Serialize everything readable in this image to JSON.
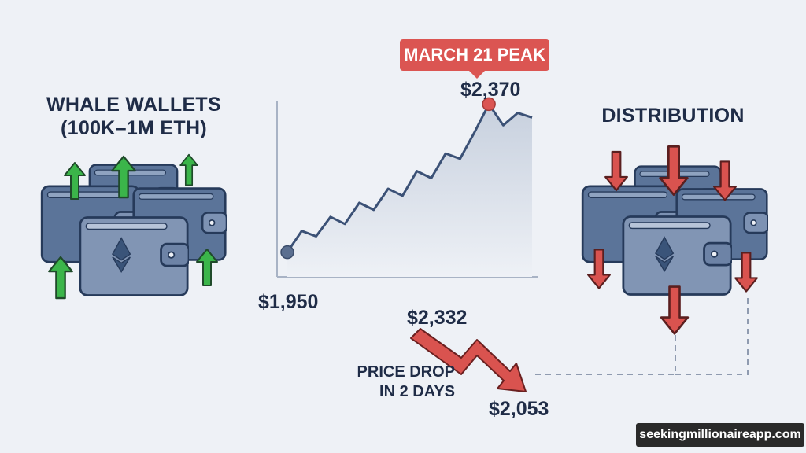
{
  "left_panel": {
    "title_line1": "WHALE WALLETS",
    "title_line2": "(100K–1M ETH)"
  },
  "right_panel": {
    "title": "DISTRIBUTION"
  },
  "chart": {
    "badge": "MARCH 21 PEAK",
    "peak_label": "$2,370",
    "start_label": "$1,950"
  },
  "drop": {
    "from_label": "$2,332",
    "to_label": "$2,053",
    "caption_line1": "PRICE DROP",
    "caption_line2": "IN 2 DAYS"
  },
  "watermark": "seekingmillionaireapp.com",
  "colors": {
    "background": "#eef1f6",
    "wallet": "#5b7499",
    "wallet_dark": "#263a5a",
    "up_arrow": "#3bb54a",
    "down_arrow": "#d9534f",
    "accent_red": "#db5552"
  },
  "chart_data": {
    "type": "line",
    "values": [
      1950,
      2010,
      1995,
      2050,
      2030,
      2090,
      2070,
      2130,
      2110,
      2180,
      2160,
      2230,
      2215,
      2290,
      2370,
      2310,
      2345,
      2332
    ],
    "annotations": [
      {
        "index": 0,
        "label": "$1,950"
      },
      {
        "index": 14,
        "label": "$2,370",
        "note": "MARCH 21 PEAK"
      }
    ],
    "ylim": [
      1880,
      2420
    ]
  }
}
